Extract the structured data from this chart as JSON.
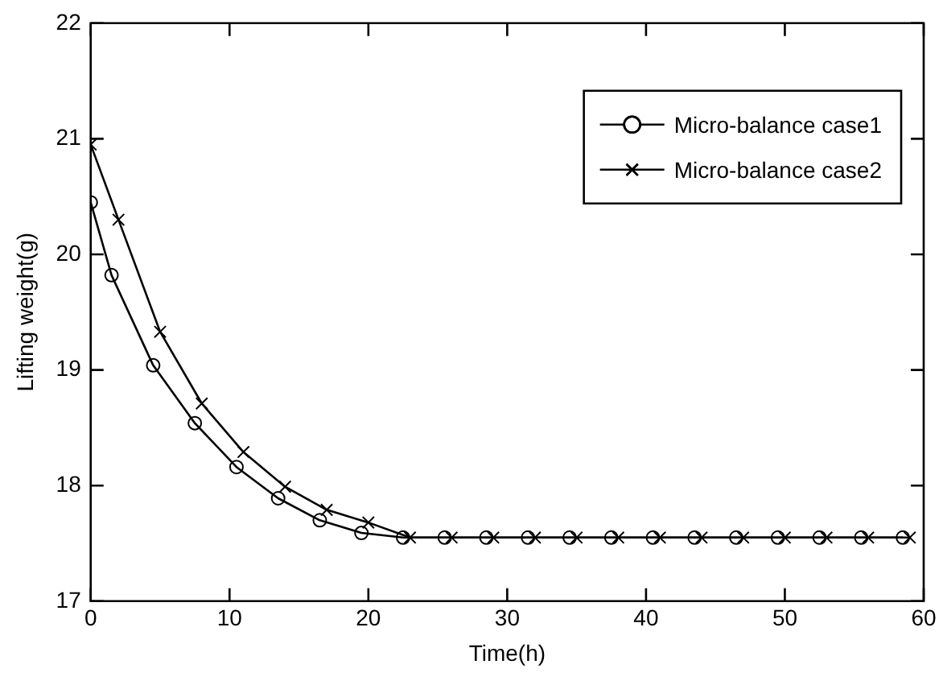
{
  "chart_data": {
    "type": "line",
    "xlabel": "Time(h)",
    "ylabel": "Lifting weight(g)",
    "xlim": [
      0,
      60
    ],
    "ylim": [
      17,
      22
    ],
    "xticks": [
      0,
      10,
      20,
      30,
      40,
      50,
      60
    ],
    "yticks": [
      17,
      18,
      19,
      20,
      21,
      22
    ],
    "grid": false,
    "legend": "top right",
    "line_style": "solid",
    "series": [
      {
        "name": "Micro-balance case1",
        "color": "#000000",
        "marker": "circle",
        "x": [
          0,
          1.5,
          4.5,
          7.5,
          10.5,
          13.5,
          16.5,
          19.5,
          22.5,
          25.5,
          28.5,
          31.5,
          34.5,
          37.5,
          40.5,
          43.5,
          46.5,
          49.5,
          52.5,
          55.5,
          58.5
        ],
        "values": [
          20.45,
          19.82,
          19.04,
          18.54,
          18.16,
          17.89,
          17.7,
          17.59,
          17.55,
          17.55,
          17.55,
          17.55,
          17.55,
          17.55,
          17.55,
          17.55,
          17.55,
          17.55,
          17.55,
          17.55,
          17.55
        ]
      },
      {
        "name": "Micro-balance case2",
        "color": "#000000",
        "marker": "cross",
        "x": [
          0,
          2,
          5,
          8,
          11,
          14,
          17,
          20,
          23,
          26,
          29,
          32,
          35,
          38,
          41,
          44,
          47,
          50,
          53,
          56,
          59
        ],
        "values": [
          20.95,
          20.3,
          19.33,
          18.71,
          18.29,
          17.99,
          17.79,
          17.68,
          17.55,
          17.55,
          17.55,
          17.55,
          17.55,
          17.55,
          17.55,
          17.55,
          17.55,
          17.55,
          17.55,
          17.55,
          17.55
        ]
      }
    ]
  }
}
